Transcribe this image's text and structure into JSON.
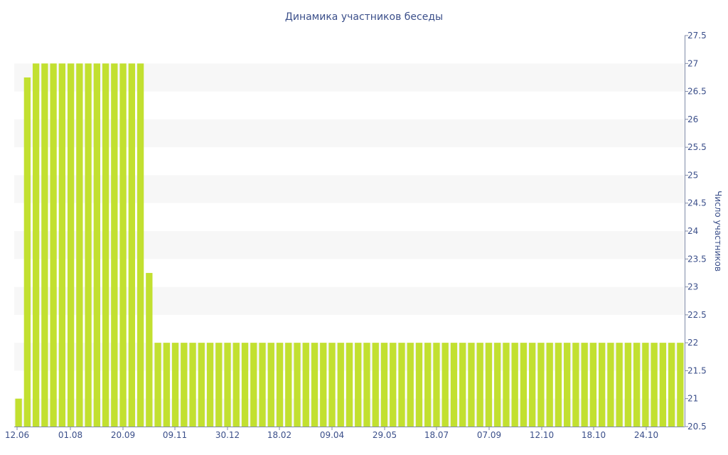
{
  "chart_data": {
    "type": "bar",
    "title": "Динамика участников беседы",
    "xlabel": "",
    "ylabel": "Число участников",
    "ylim": [
      20.5,
      27.5
    ],
    "y_ticks": [
      "20.5",
      "21",
      "21.5",
      "22",
      "22.5",
      "23",
      "23.5",
      "24",
      "24.5",
      "25",
      "25.5",
      "26",
      "26.5",
      "27",
      "27.5"
    ],
    "x_ticks": [
      "12.06",
      "01.08",
      "20.09",
      "09.11",
      "30.12",
      "18.02",
      "09.04",
      "29.05",
      "18.07",
      "07.09",
      "12.10",
      "18.10",
      "24.10"
    ],
    "y_axis_position": "right",
    "grid": "alternating-bands",
    "bar_color": "#c2e030",
    "values": [
      21,
      26.75,
      27,
      27,
      27,
      27,
      27,
      27,
      27,
      27,
      27,
      27,
      27,
      27,
      27,
      23.25,
      22,
      22,
      22,
      22,
      22,
      22,
      22,
      22,
      22,
      22,
      22,
      22,
      22,
      22,
      22,
      22,
      22,
      22,
      22,
      22,
      22,
      22,
      22,
      22,
      22,
      22,
      22,
      22,
      22,
      22,
      22,
      22,
      22,
      22,
      22,
      22,
      22,
      22,
      22,
      22,
      22,
      22,
      22,
      22,
      22,
      22,
      22,
      22,
      22,
      22,
      22,
      22,
      22,
      22,
      22,
      22,
      22,
      22,
      22,
      22,
      22
    ]
  }
}
